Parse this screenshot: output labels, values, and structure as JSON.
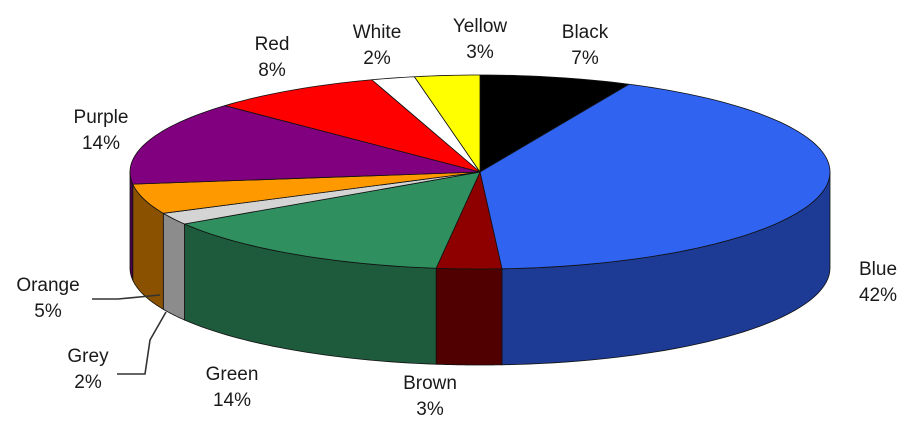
{
  "chart_data": {
    "type": "pie",
    "style": "3d",
    "title": "",
    "start": "12 o'clock, clockwise",
    "slices": [
      {
        "label": "Black",
        "pct": "7%",
        "value": 7,
        "color": "#000000",
        "side": "#000000"
      },
      {
        "label": "Blue",
        "pct": "42%",
        "value": 42,
        "color": "#2f63f0",
        "side": "#1d3a95"
      },
      {
        "label": "Brown",
        "pct": "3%",
        "value": 3,
        "color": "#8e0000",
        "side": "#500000"
      },
      {
        "label": "Green",
        "pct": "14%",
        "value": 14,
        "color": "#2f8f5e",
        "side": "#1e5a3c"
      },
      {
        "label": "Grey",
        "pct": "2%",
        "value": 2,
        "color": "#d4d4d4",
        "side": "#8c8c8c"
      },
      {
        "label": "Orange",
        "pct": "5%",
        "value": 5,
        "color": "#ff9900",
        "side": "#8a5200"
      },
      {
        "label": "Purple",
        "pct": "14%",
        "value": 14,
        "color": "#800080",
        "side": "#4b004b"
      },
      {
        "label": "Red",
        "pct": "8%",
        "value": 8,
        "color": "#ff0000",
        "side": "#990000"
      },
      {
        "label": "White",
        "pct": "2%",
        "value": 2,
        "color": "#ffffff",
        "side": "#dddddd"
      },
      {
        "label": "Yellow",
        "pct": "3%",
        "value": 3,
        "color": "#ffff00",
        "side": "#aaaa00"
      }
    ]
  }
}
